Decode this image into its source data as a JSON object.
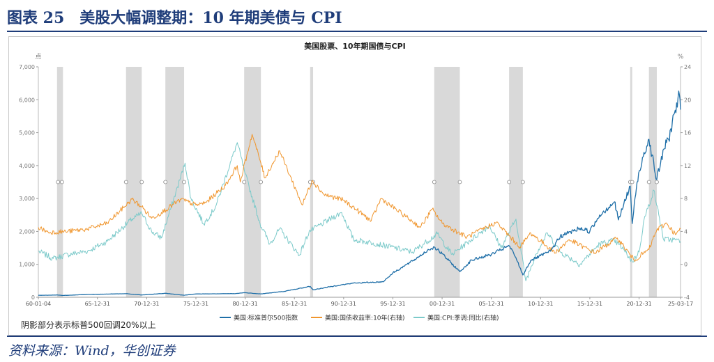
{
  "header": {
    "title": "图表 25　美股大幅调整期：10 年期美债与 CPI"
  },
  "source": "资料来源：Wind，华创证券",
  "footnote": "阴影部分表示标普500回调20%以上",
  "colors": {
    "spx": "#1f6fa8",
    "bond": "#f0962e",
    "cpi": "#7ccaca",
    "shade": "#d9d9d9",
    "header": "#1f3d7a"
  },
  "chart_data": {
    "type": "line",
    "title": "美国股票、10年期国债与CPI",
    "left_axis": {
      "unit": "点",
      "min": 0,
      "max": 7000,
      "ticks": [
        "0",
        "1,000",
        "2,000",
        "3,000",
        "4,000",
        "5,000",
        "6,000",
        "7,000"
      ]
    },
    "right_axis": {
      "unit": "%",
      "min": -4,
      "max": 24,
      "ticks": [
        "-4",
        "0",
        "4",
        "8",
        "12",
        "16",
        "20",
        "24"
      ]
    },
    "x_axis": {
      "min": 1960.0,
      "max": 2025.21,
      "ticks": [
        {
          "label": "60-01-04",
          "x": 1960.0
        },
        {
          "label": "65-12-31",
          "x": 1966.0
        },
        {
          "label": "70-12-31",
          "x": 1971.0
        },
        {
          "label": "75-12-31",
          "x": 1976.0
        },
        {
          "label": "80-12-31",
          "x": 1981.0
        },
        {
          "label": "85-12-31",
          "x": 1986.0
        },
        {
          "label": "90-12-31",
          "x": 1991.0
        },
        {
          "label": "95-12-31",
          "x": 1996.0
        },
        {
          "label": "00-12-31",
          "x": 2001.0
        },
        {
          "label": "05-12-31",
          "x": 2006.0
        },
        {
          "label": "10-12-31",
          "x": 2011.0
        },
        {
          "label": "15-12-31",
          "x": 2016.0
        },
        {
          "label": "20-12-31",
          "x": 2021.0
        },
        {
          "label": "25-03-17",
          "x": 2025.21
        }
      ]
    },
    "drawdowns": [
      [
        1961.9,
        1962.5
      ],
      [
        1968.9,
        1970.5
      ],
      [
        1972.9,
        1974.8
      ],
      [
        1980.9,
        1982.6
      ],
      [
        1987.6,
        1987.9
      ],
      [
        2000.2,
        2002.8
      ],
      [
        2007.8,
        2009.2
      ],
      [
        2020.1,
        2020.3
      ],
      [
        2022.0,
        2022.8
      ]
    ],
    "markers": [
      1962.0,
      1962.4,
      1968.9,
      1970.5,
      1972.9,
      1974.8,
      1980.9,
      1982.6,
      1987.6,
      1987.9,
      2000.2,
      2002.8,
      2007.8,
      2009.2,
      2020.1,
      2020.3,
      2022.0,
      2022.8
    ],
    "series": [
      {
        "name": "美国:标准普尔500指数",
        "axis": "left",
        "points": [
          [
            1960.0,
            59
          ],
          [
            1962.0,
            68
          ],
          [
            1962.5,
            55
          ],
          [
            1965.0,
            85
          ],
          [
            1968.9,
            108
          ],
          [
            1970.5,
            70
          ],
          [
            1972.9,
            120
          ],
          [
            1974.8,
            62
          ],
          [
            1976.0,
            100
          ],
          [
            1980.0,
            110
          ],
          [
            1980.9,
            140
          ],
          [
            1982.6,
            102
          ],
          [
            1985.0,
            180
          ],
          [
            1987.6,
            330
          ],
          [
            1987.9,
            225
          ],
          [
            1990.0,
            340
          ],
          [
            1992.0,
            430
          ],
          [
            1995.0,
            470
          ],
          [
            1996.0,
            740
          ],
          [
            1998.0,
            1100
          ],
          [
            1999.5,
            1420
          ],
          [
            2000.2,
            1527
          ],
          [
            2001.0,
            1320
          ],
          [
            2002.8,
            776
          ],
          [
            2004.0,
            1130
          ],
          [
            2006.0,
            1300
          ],
          [
            2007.8,
            1565
          ],
          [
            2008.5,
            1200
          ],
          [
            2009.2,
            676
          ],
          [
            2010.0,
            1120
          ],
          [
            2011.0,
            1260
          ],
          [
            2012.0,
            1400
          ],
          [
            2013.0,
            1850
          ],
          [
            2015.0,
            2100
          ],
          [
            2016.0,
            2000
          ],
          [
            2017.0,
            2500
          ],
          [
            2018.5,
            2900
          ],
          [
            2018.9,
            2350
          ],
          [
            2020.1,
            3380
          ],
          [
            2020.3,
            2237
          ],
          [
            2020.8,
            3500
          ],
          [
            2021.5,
            4400
          ],
          [
            2022.0,
            4800
          ],
          [
            2022.8,
            3577
          ],
          [
            2023.5,
            4500
          ],
          [
            2024.0,
            4800
          ],
          [
            2024.6,
            5600
          ],
          [
            2025.1,
            6150
          ],
          [
            2025.21,
            5700
          ]
        ]
      },
      {
        "name": "美国:国债收益率:10年(右轴)",
        "axis": "right",
        "points": [
          [
            1960.0,
            4.5
          ],
          [
            1961.0,
            3.9
          ],
          [
            1963.0,
            4.0
          ],
          [
            1965.0,
            4.3
          ],
          [
            1967.0,
            5.0
          ],
          [
            1969.5,
            7.9
          ],
          [
            1970.5,
            7.0
          ],
          [
            1971.5,
            5.6
          ],
          [
            1972.5,
            6.3
          ],
          [
            1974.5,
            7.9
          ],
          [
            1976.0,
            7.2
          ],
          [
            1977.0,
            7.5
          ],
          [
            1979.0,
            9.6
          ],
          [
            1980.2,
            12.0
          ],
          [
            1980.5,
            10.0
          ],
          [
            1981.7,
            15.8
          ],
          [
            1982.6,
            12.3
          ],
          [
            1983.0,
            10.5
          ],
          [
            1984.5,
            13.8
          ],
          [
            1986.8,
            7.2
          ],
          [
            1987.8,
            10.2
          ],
          [
            1989.0,
            8.5
          ],
          [
            1991.0,
            7.8
          ],
          [
            1993.8,
            5.3
          ],
          [
            1994.8,
            8.0
          ],
          [
            1998.8,
            4.5
          ],
          [
            2000.0,
            6.7
          ],
          [
            2001.0,
            5.0
          ],
          [
            2003.5,
            3.3
          ],
          [
            2006.5,
            5.1
          ],
          [
            2008.9,
            2.1
          ],
          [
            2010.0,
            3.8
          ],
          [
            2012.5,
            1.4
          ],
          [
            2013.9,
            3.0
          ],
          [
            2016.5,
            1.4
          ],
          [
            2018.8,
            3.2
          ],
          [
            2020.5,
            0.5
          ],
          [
            2022.0,
            1.8
          ],
          [
            2022.8,
            4.2
          ],
          [
            2023.8,
            5.0
          ],
          [
            2024.7,
            3.6
          ],
          [
            2025.21,
            4.3
          ]
        ]
      },
      {
        "name": "美国:CPI:季调:同比(右轴)",
        "axis": "right",
        "points": [
          [
            1960.0,
            1.6
          ],
          [
            1961.5,
            0.7
          ],
          [
            1963.0,
            1.2
          ],
          [
            1965.0,
            1.6
          ],
          [
            1967.0,
            2.8
          ],
          [
            1969.5,
            5.5
          ],
          [
            1970.5,
            6.2
          ],
          [
            1971.5,
            4.0
          ],
          [
            1972.5,
            3.2
          ],
          [
            1973.5,
            7.0
          ],
          [
            1974.9,
            12.3
          ],
          [
            1975.5,
            8.0
          ],
          [
            1976.8,
            4.9
          ],
          [
            1978.0,
            7.0
          ],
          [
            1980.2,
            14.8
          ],
          [
            1981.0,
            11.0
          ],
          [
            1982.5,
            5.0
          ],
          [
            1983.5,
            2.5
          ],
          [
            1984.5,
            4.3
          ],
          [
            1986.5,
            1.1
          ],
          [
            1987.5,
            4.0
          ],
          [
            1990.8,
            6.3
          ],
          [
            1992.0,
            3.0
          ],
          [
            1994.0,
            2.6
          ],
          [
            1998.0,
            1.5
          ],
          [
            2000.5,
            3.7
          ],
          [
            2002.0,
            1.2
          ],
          [
            2005.8,
            4.7
          ],
          [
            2007.0,
            2.0
          ],
          [
            2008.5,
            5.5
          ],
          [
            2009.5,
            -2.0
          ],
          [
            2010.5,
            1.2
          ],
          [
            2011.7,
            3.8
          ],
          [
            2013.0,
            1.5
          ],
          [
            2015.0,
            0.0
          ],
          [
            2017.0,
            2.5
          ],
          [
            2018.5,
            2.9
          ],
          [
            2019.5,
            1.7
          ],
          [
            2020.3,
            0.3
          ],
          [
            2021.0,
            1.5
          ],
          [
            2021.5,
            5.4
          ],
          [
            2022.5,
            9.0
          ],
          [
            2023.0,
            6.0
          ],
          [
            2023.5,
            3.0
          ],
          [
            2024.5,
            3.0
          ],
          [
            2025.21,
            2.8
          ]
        ]
      }
    ]
  }
}
